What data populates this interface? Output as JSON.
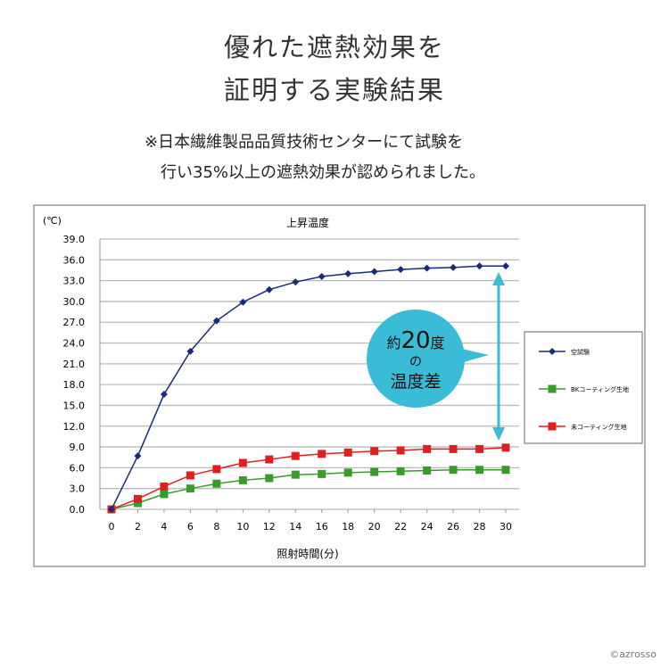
{
  "heading": {
    "line1": "優れた遮熱効果を",
    "line2": "証明する実験結果"
  },
  "note": {
    "line1": "※日本繊維製品品質技術センターにて試験を",
    "line2": "行い35%以上の遮熱効果が認められました。"
  },
  "callout": {
    "prefix": "約",
    "number": "20",
    "suffix": "度",
    "line2": "の",
    "line3": "温度差",
    "color": "#3bbcd6"
  },
  "copyright": "©azrosso",
  "chart_data": {
    "type": "line",
    "title": "上昇温度",
    "ylabel": "(℃)",
    "xlabel": "照射時間(分)",
    "x": [
      0,
      2,
      4,
      6,
      8,
      10,
      12,
      14,
      16,
      18,
      20,
      22,
      24,
      26,
      28,
      30
    ],
    "xticks": [
      "0",
      "2",
      "4",
      "6",
      "8",
      "10",
      "12",
      "14",
      "16",
      "18",
      "20",
      "22",
      "24",
      "26",
      "28",
      "30"
    ],
    "yticks": [
      "0.0",
      "3.0",
      "6.0",
      "9.0",
      "12.0",
      "15.0",
      "18.0",
      "21.0",
      "24.0",
      "27.0",
      "30.0",
      "33.0",
      "36.0",
      "39.0"
    ],
    "ylim": [
      0,
      39
    ],
    "xlim": [
      0,
      30
    ],
    "grid": true,
    "legend": "right",
    "series": [
      {
        "name": "空試験",
        "color": "#1a2a7a",
        "marker": "diamond",
        "values": [
          0,
          7.7,
          16.6,
          22.8,
          27.2,
          29.9,
          31.7,
          32.8,
          33.6,
          34.0,
          34.3,
          34.6,
          34.8,
          34.9,
          35.1,
          35.1
        ]
      },
      {
        "name": "BKコーティング生地",
        "color": "#3a9a2a",
        "marker": "square",
        "values": [
          0,
          0.9,
          2.2,
          3.0,
          3.7,
          4.2,
          4.5,
          5.0,
          5.1,
          5.3,
          5.4,
          5.5,
          5.6,
          5.7,
          5.7,
          5.7
        ]
      },
      {
        "name": "未コーティング生地",
        "color": "#e02020",
        "marker": "square",
        "values": [
          0,
          1.5,
          3.3,
          4.9,
          5.8,
          6.7,
          7.2,
          7.7,
          8.0,
          8.2,
          8.4,
          8.5,
          8.7,
          8.7,
          8.7,
          8.9
        ]
      }
    ]
  }
}
